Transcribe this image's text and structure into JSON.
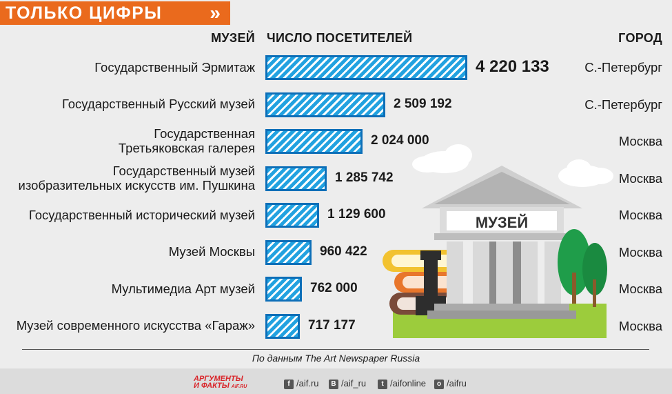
{
  "tag": {
    "title": "ТОЛЬКО ЦИФРЫ",
    "arrow": "»"
  },
  "chart_data": {
    "type": "bar",
    "orientation": "horizontal",
    "headers": {
      "museum": "МУЗЕЙ",
      "visitors": "ЧИСЛО ПОСЕТИТЕЛЕЙ",
      "city": "ГОРОД"
    },
    "rows": [
      {
        "name": "Государственный Эрмитаж",
        "value": 4220133,
        "label": "4 220 133",
        "city": "С.-Петербург"
      },
      {
        "name": "Государственный Русский музей",
        "value": 2509192,
        "label": "2 509 192",
        "city": "С.-Петербург"
      },
      {
        "name": "Государственная\nТретьяковская галерея",
        "value": 2024000,
        "label": "2 024 000",
        "city": "Москва"
      },
      {
        "name": "Государственный музей\nизобразительных искусств им. Пушкина",
        "value": 1285742,
        "label": "1 285 742",
        "city": "Москва"
      },
      {
        "name": "Государственный исторический музей",
        "value": 1129600,
        "label": "1 129 600",
        "city": "Москва"
      },
      {
        "name": "Музей Москвы",
        "value": 960422,
        "label": "960 422",
        "city": "Москва"
      },
      {
        "name": "Мультимедиа Арт музей",
        "value": 762000,
        "label": "762 000",
        "city": "Москва"
      },
      {
        "name": "Музей современного искусства «Гараж»",
        "value": 717177,
        "label": "717 177",
        "city": "Москва"
      }
    ],
    "colors": {
      "bar_fill": "#22a2e0",
      "bar_stripe": "#ffffff",
      "bar_border": "#0d6fb8",
      "accent": "#ea6a1d"
    },
    "grid": false
  },
  "illustration": {
    "sign": "МУЗЕЙ"
  },
  "source": "По данным The Art Newspaper Russia",
  "footer": {
    "logo_line1": "АРГУМЕНТЫ",
    "logo_line2": "И ФАКТЫ",
    "logo_domain": "AIF.RU",
    "social": [
      {
        "icon": "facebook-icon",
        "glyph": "f",
        "handle": "/aif.ru"
      },
      {
        "icon": "vk-icon",
        "glyph": "В",
        "handle": "/aif_ru"
      },
      {
        "icon": "twitter-icon",
        "glyph": "t",
        "handle": "/aifonline"
      },
      {
        "icon": "odnoklassniki-icon",
        "glyph": "о",
        "handle": "/aifru"
      }
    ]
  }
}
